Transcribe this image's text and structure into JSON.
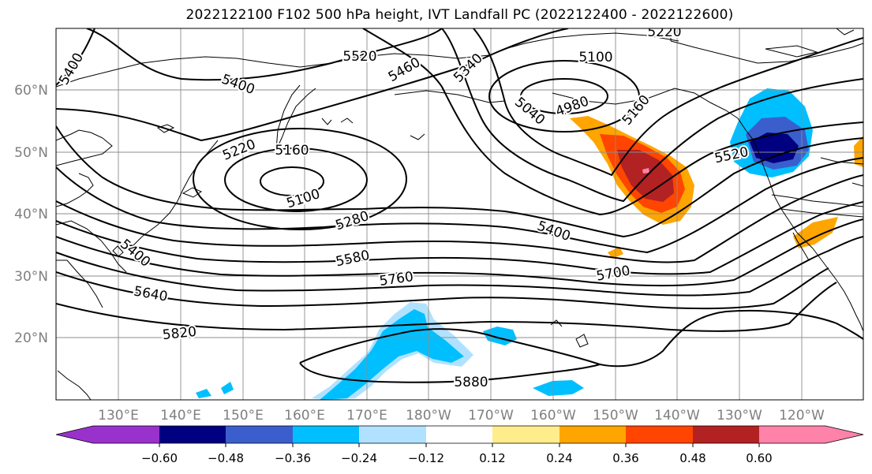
{
  "title": "2022122100 F102 500 hPa height, IVT Landfall PC (2022122400 - 2022122600)",
  "lat_labels": [
    "60°N",
    "50°N",
    "40°N",
    "30°N",
    "20°N"
  ],
  "lon_labels": [
    "130°E",
    "140°E",
    "150°E",
    "160°E",
    "170°E",
    "180°W",
    "170°W",
    "160°W",
    "150°W",
    "140°W",
    "130°W",
    "120°W"
  ],
  "contour_labels": [
    "5400",
    "5520",
    "5460",
    "5340",
    "5100",
    "5220",
    "5400",
    "4980",
    "5040",
    "5160",
    "5220",
    "5160",
    "5100",
    "5520",
    "5280",
    "5400",
    "5400",
    "5580",
    "5760",
    "5700",
    "5640",
    "5820",
    "5880"
  ],
  "colorbar": {
    "ticks": [
      "−0.60",
      "−0.48",
      "−0.36",
      "−0.24",
      "−0.12",
      "0.12",
      "0.24",
      "0.36",
      "0.48",
      "0.60"
    ],
    "colors": [
      "#9932cc",
      "#000080",
      "#3a5fcd",
      "#00bfff",
      "#b0e2ff",
      "#ffffff",
      "#ffec8b",
      "#ffa500",
      "#ff4500",
      "#b22222",
      "#ff82ab"
    ]
  }
}
